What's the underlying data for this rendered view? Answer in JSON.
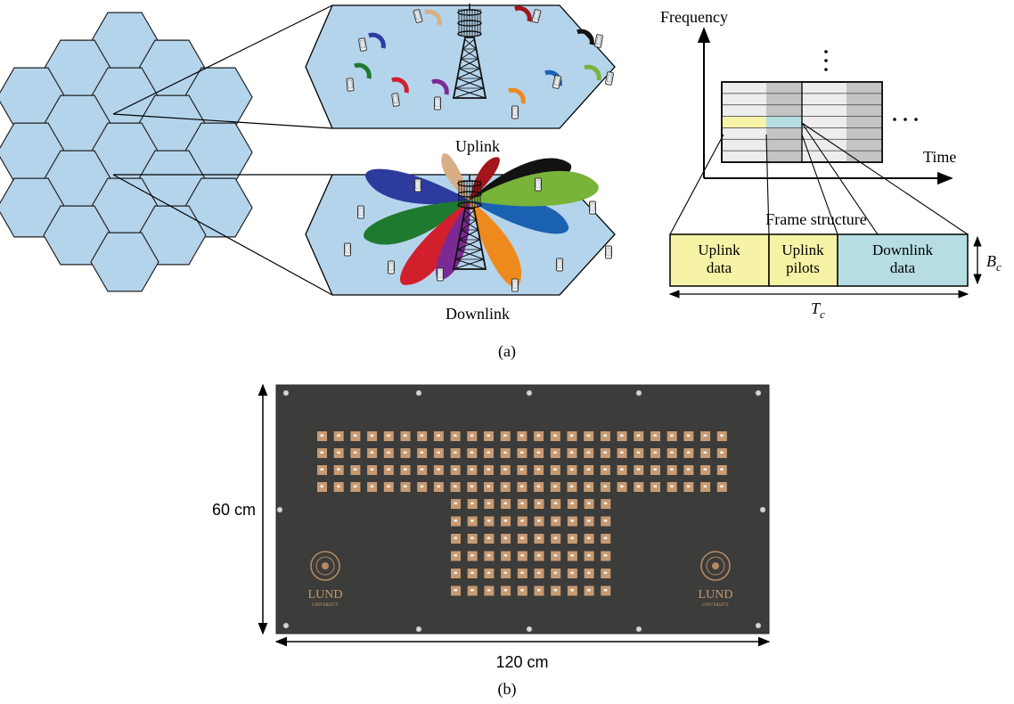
{
  "panel_a": {
    "caption": "(a)",
    "uplink_label": "Uplink",
    "downlink_label": "Downlink",
    "beam_colors": [
      "#d8ae86",
      "#2e3b9e",
      "#1e7a2e",
      "#d11f2b",
      "#7c2a93",
      "#121212",
      "#a3141b",
      "#1b61b1",
      "#78b33a",
      "#ee8a1d"
    ],
    "hex_fill": "#b4d4ec",
    "resource_grid": {
      "freq_axis_label": "Frequency",
      "time_axis_label": "Time",
      "frame_title": "Frame structure",
      "cells": [
        {
          "line1": "Uplink",
          "line2": "data",
          "color": "#f6f3a6"
        },
        {
          "line1": "Uplink",
          "line2": "pilots",
          "color": "#f6f3a6"
        },
        {
          "line1": "Downlink",
          "line2": "data",
          "color": "#b5dde2"
        }
      ],
      "bc_label": "B",
      "bc_sub": "c",
      "tc_label": "T",
      "tc_sub": "c"
    }
  },
  "panel_b": {
    "caption": "(b)",
    "height_label": "60 cm",
    "width_label": "120 cm",
    "logo_name": "LUND",
    "logo_sub": "UNIVERSITY",
    "board_color": "#3c3c3a",
    "pad_color": "#c89a72"
  }
}
